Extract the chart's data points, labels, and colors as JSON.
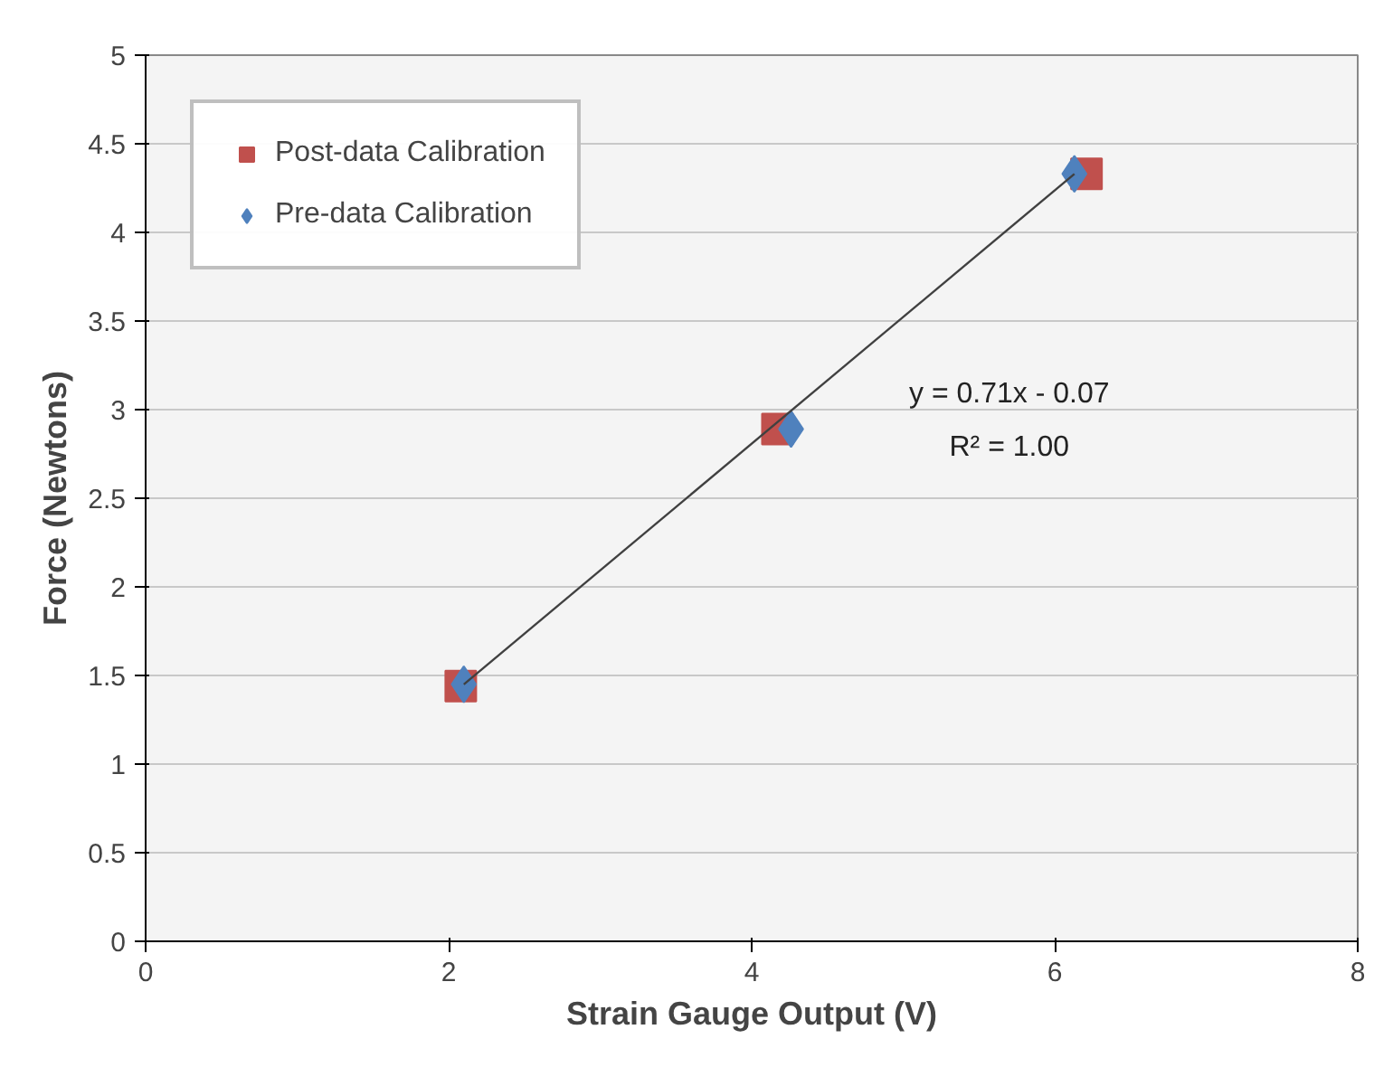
{
  "chart_data": {
    "type": "scatter",
    "xlabel": "Strain Gauge Output (V)",
    "ylabel": "Force (Newtons)",
    "xlim": [
      0,
      8
    ],
    "xticks": [
      0,
      2,
      4,
      6,
      8
    ],
    "ylim": [
      0,
      5
    ],
    "yticks": [
      0,
      0.5,
      1,
      1.5,
      2,
      2.5,
      3,
      3.5,
      4,
      4.5,
      5
    ],
    "grid": "y",
    "legend": "top left",
    "series": [
      {
        "name": "Post-data Calibration",
        "color": "#c0504d",
        "marker": "square",
        "x": [
          2.08,
          4.17,
          6.21
        ],
        "values": [
          1.44,
          2.89,
          4.33
        ]
      },
      {
        "name": "Pre-data Calibration",
        "color": "#4f81bd",
        "marker": "diamond",
        "x": [
          2.1,
          4.26,
          6.13
        ],
        "values": [
          1.45,
          2.89,
          4.33
        ]
      },
      {
        "type": "line",
        "color": "#404040",
        "marker": "none",
        "x": [
          2.1,
          6.13
        ],
        "values": [
          1.45,
          4.33
        ]
      }
    ],
    "annotations": [
      "y = 0.71x - 0.07",
      "R² = 1.00"
    ]
  }
}
